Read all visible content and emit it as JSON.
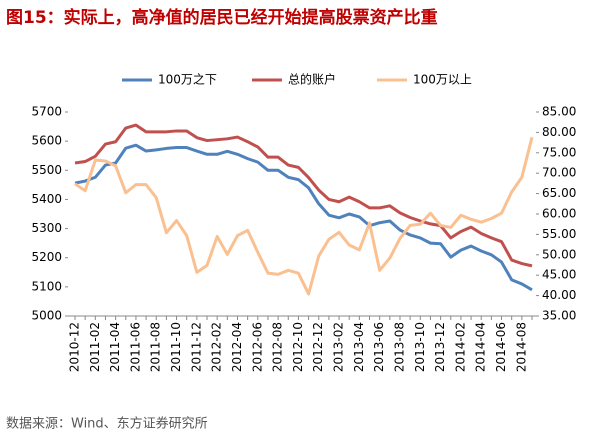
{
  "chart_data": {
    "type": "line",
    "title": "图15：实际上，高净值的居民已经开始提高股票资产比重",
    "source": "数据来源：Wind、东方证券研究所",
    "categories": [
      "2010-12",
      null,
      "2011-02",
      null,
      "2011-04",
      null,
      "2011-06",
      null,
      "2011-08",
      null,
      "2011-10",
      null,
      "2011-12",
      null,
      "2012-02",
      null,
      "2012-04",
      null,
      "2012-06",
      null,
      "2012-08",
      null,
      "2012-10",
      null,
      "2012-12",
      null,
      "2013-02",
      null,
      "2013-04",
      null,
      "2013-06",
      null,
      "2013-08",
      null,
      "2013-10",
      null,
      "2013-12",
      null,
      "2014-02",
      null,
      "2014-04",
      null,
      "2014-06",
      null,
      "2014-08",
      null
    ],
    "series": [
      {
        "name": "100万之下",
        "color": "#4f81bd",
        "values": [
          5456,
          5463,
          5476,
          5518,
          5525,
          5576,
          5586,
          5566,
          5570,
          5575,
          5578,
          5578,
          5566,
          5555,
          5555,
          5565,
          5555,
          5540,
          5528,
          5500,
          5500,
          5476,
          5468,
          5440,
          5385,
          5346,
          5337,
          5350,
          5340,
          5310,
          5320,
          5326,
          5295,
          5278,
          5268,
          5250,
          5248,
          5202,
          5226,
          5240,
          5223,
          5210,
          5185,
          5124,
          5110,
          5090
        ]
      },
      {
        "name": "总的账户",
        "color": "#c0504d",
        "values": [
          5525,
          5530,
          5548,
          5590,
          5598,
          5645,
          5655,
          5632,
          5632,
          5632,
          5635,
          5635,
          5612,
          5602,
          5605,
          5608,
          5614,
          5598,
          5580,
          5545,
          5545,
          5518,
          5510,
          5475,
          5432,
          5400,
          5392,
          5408,
          5392,
          5371,
          5371,
          5378,
          5354,
          5338,
          5326,
          5316,
          5310,
          5268,
          5290,
          5305,
          5283,
          5268,
          5255,
          5192,
          5180,
          5172
        ]
      },
      {
        "name": "100万以上",
        "color": "#fac090",
        "axis": "y2",
        "values": [
          67.4,
          65.7,
          73.2,
          73.0,
          71.8,
          65.2,
          67.2,
          67.2,
          64,
          55.4,
          58.4,
          54.7,
          45.7,
          47.4,
          54.5,
          50.1,
          54.7,
          56,
          50.6,
          45.5,
          45.2,
          46.2,
          45.5,
          40.4,
          49.7,
          53.8,
          55.5,
          52.4,
          51.2,
          57.8,
          46.2,
          49.2,
          54.0,
          57.2,
          57.5,
          60.2,
          57.2,
          56.7,
          59.7,
          58.7,
          58.0,
          58.9,
          60.2,
          65.4,
          69.0,
          78.8
        ]
      }
    ],
    "ylim": [
      5000,
      5700
    ],
    "yticks": [
      5000,
      5100,
      5200,
      5300,
      5400,
      5500,
      5600,
      5700
    ],
    "y2lim": [
      35,
      85
    ],
    "y2ticks": [
      {
        "value": 35,
        "label": "35.00"
      },
      {
        "value": 40,
        "label": "40.00"
      },
      {
        "value": 45,
        "label": "45.00"
      },
      {
        "value": 50,
        "label": "50.00"
      },
      {
        "value": 55,
        "label": "55.00"
      },
      {
        "value": 60,
        "label": "60.00"
      },
      {
        "value": 65,
        "label": "65.00"
      },
      {
        "value": 70,
        "label": "70.00"
      },
      {
        "value": 75,
        "label": "75.00"
      },
      {
        "value": 80,
        "label": "80.00"
      },
      {
        "value": 85,
        "label": "85.00"
      }
    ],
    "grid": false,
    "legend": "top"
  }
}
